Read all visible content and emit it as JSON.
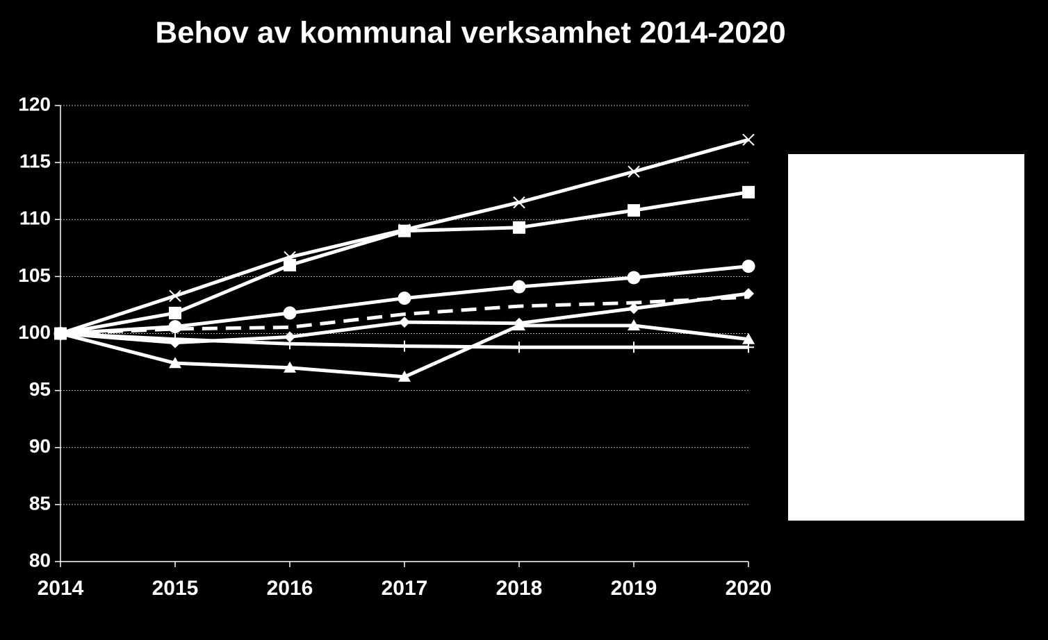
{
  "chart_data": {
    "type": "line",
    "title": "Behov av kommunal verksamhet 2014-2020",
    "x": [
      2014,
      2015,
      2016,
      2017,
      2018,
      2019,
      2020
    ],
    "xlim": [
      2014,
      2020
    ],
    "xticks": [
      2014,
      2015,
      2016,
      2017,
      2018,
      2019,
      2020
    ],
    "ylim": [
      80,
      120
    ],
    "yticks": [
      80,
      85,
      90,
      95,
      100,
      105,
      110,
      115,
      120
    ],
    "grid": true,
    "series": [
      {
        "color": "#ffffff",
        "marker": "x",
        "values": [
          100,
          103.3,
          106.7,
          109.1,
          111.5,
          114.2,
          117.0
        ]
      },
      {
        "color": "#ffffff",
        "marker": "square",
        "values": [
          100,
          101.8,
          106.0,
          109.0,
          109.3,
          110.8,
          112.4
        ]
      },
      {
        "color": "#ffffff",
        "marker": "circle",
        "values": [
          100,
          100.6,
          101.8,
          103.1,
          104.1,
          104.9,
          105.9
        ]
      },
      {
        "color": "#ffffff",
        "marker": "none",
        "dashed": true,
        "values": [
          100,
          100.4,
          100.55,
          101.7,
          102.4,
          102.7,
          103.2
        ]
      },
      {
        "color": "#ffffff",
        "marker": "diamond",
        "values": [
          100,
          99.2,
          99.7,
          101.0,
          100.9,
          102.2,
          103.5
        ]
      },
      {
        "color": "#ffffff",
        "marker": "triangle",
        "values": [
          100,
          97.4,
          97.0,
          96.2,
          100.7,
          100.7,
          99.5
        ]
      },
      {
        "color": "#ffffff",
        "marker": "plus",
        "values": [
          100,
          99.5,
          99.1,
          98.9,
          98.8,
          98.8,
          98.8
        ]
      }
    ]
  }
}
